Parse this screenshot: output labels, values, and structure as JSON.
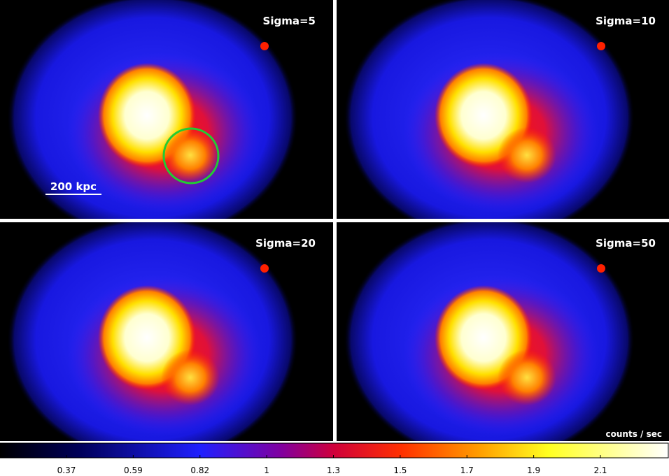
{
  "panels": [
    {
      "label": "Sigma=5"
    },
    {
      "label": "Sigma=10"
    },
    {
      "label": "Sigma=20"
    },
    {
      "label": "Sigma=50"
    }
  ],
  "scale_bar": "200 kpc",
  "colorbar": {
    "unit_label": "counts / sec",
    "ticks": [
      0.37,
      0.59,
      0.82,
      1,
      1.3,
      1.5,
      1.7,
      1.9,
      2.1
    ]
  }
}
